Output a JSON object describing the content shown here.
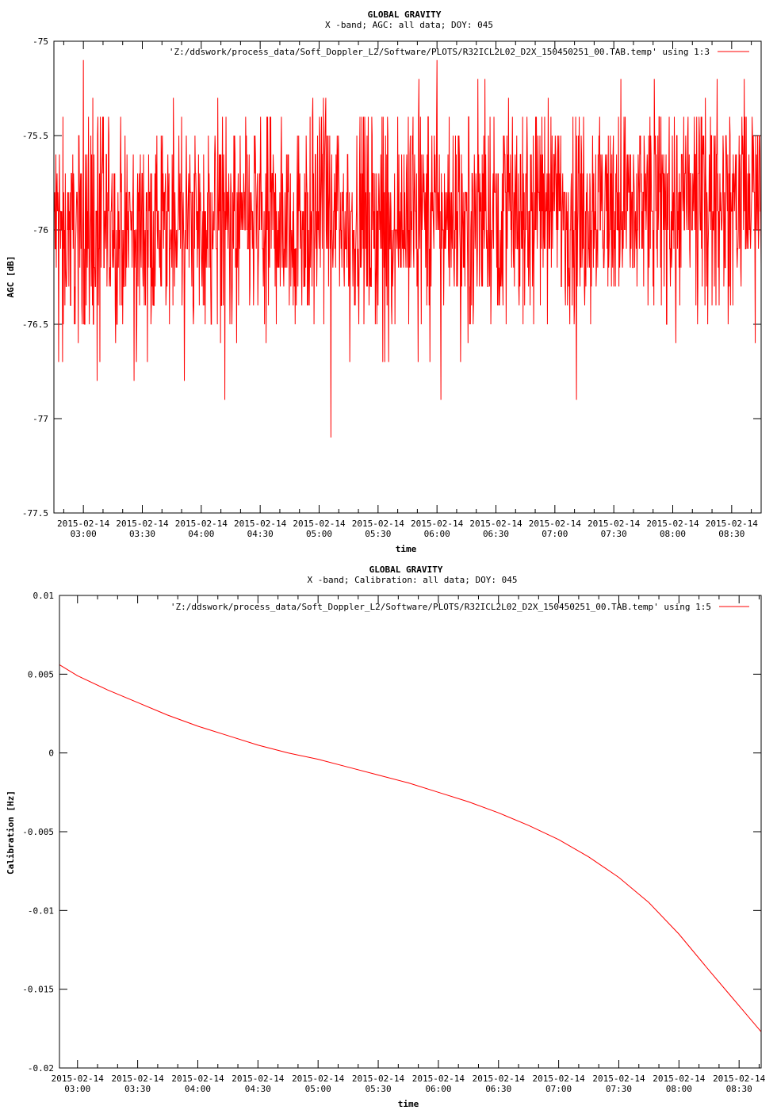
{
  "colors": {
    "series": "#ff0000",
    "axis": "#000000",
    "background": "#ffffff"
  },
  "chart_data": [
    {
      "type": "line",
      "title": "GLOBAL GRAVITY",
      "subtitle": "X -band; AGC: all data; DOY: 045",
      "xlabel": "time",
      "ylabel": "AGC [dB]",
      "legend": "'Z:/ddswork/process_data/Soft_Doppler_L2/Software/PLOTS/R32ICL2L02_D2X_150450251_00.TAB.temp' using 1:3",
      "legend_position": "top-right",
      "grid": false,
      "ylim": [
        -77.5,
        -75
      ],
      "yticks": [
        "-75",
        "-75.5",
        "-76",
        "-76.5",
        "-77",
        "-77.5"
      ],
      "ytick_values": [
        -75,
        -75.5,
        -76,
        -76.5,
        -77,
        -77.5
      ],
      "xrange_minutes": [
        165,
        525
      ],
      "xtick_minutes": [
        180,
        210,
        240,
        270,
        300,
        330,
        360,
        390,
        420,
        450,
        480,
        510
      ],
      "xtick_dates": [
        "2015-02-14",
        "2015-02-14",
        "2015-02-14",
        "2015-02-14",
        "2015-02-14",
        "2015-02-14",
        "2015-02-14",
        "2015-02-14",
        "2015-02-14",
        "2015-02-14",
        "2015-02-14",
        "2015-02-14"
      ],
      "xtick_times": [
        "03:00",
        "03:30",
        "04:00",
        "04:30",
        "05:00",
        "05:30",
        "06:00",
        "06:30",
        "07:00",
        "07:30",
        "08:00",
        "08:30"
      ],
      "series": [
        {
          "description_points": "noisy AGC signal sampled ~every 1 min; values in dB",
          "noise_profile": {
            "start_minute": 165,
            "end_minute": 525,
            "mean_start": -76.0,
            "mean_end": -75.85,
            "typical_range": [
              -76.5,
              -75.4
            ],
            "extremes": [
              {
                "minute": 180,
                "value": -75.1
              },
              {
                "minute": 187,
                "value": -76.8
              },
              {
                "minute": 252,
                "value": -76.9
              },
              {
                "minute": 306,
                "value": -77.1
              },
              {
                "minute": 360,
                "value": -75.1
              },
              {
                "minute": 362,
                "value": -76.9
              },
              {
                "minute": 431,
                "value": -76.9
              },
              {
                "minute": 522,
                "value": -76.6
              }
            ]
          }
        }
      ]
    },
    {
      "type": "line",
      "title": "GLOBAL GRAVITY",
      "subtitle": "X -band; Calibration: all data; DOY: 045",
      "xlabel": "time",
      "ylabel": "Calibration [Hz]",
      "legend": "'Z:/ddswork/process_data/Soft_Doppler_L2/Software/PLOTS/R32ICL2L02_D2X_150450251_00.TAB.temp' using 1:5",
      "legend_position": "top-right",
      "grid": false,
      "ylim": [
        -0.02,
        0.01
      ],
      "yticks": [
        "0.01",
        "0.005",
        "0",
        "-0.005",
        "-0.01",
        "-0.015",
        "-0.02"
      ],
      "ytick_values": [
        0.01,
        0.005,
        0,
        -0.005,
        -0.01,
        -0.015,
        -0.02
      ],
      "xrange_minutes": [
        171,
        521
      ],
      "xtick_minutes": [
        180,
        210,
        240,
        270,
        300,
        330,
        360,
        390,
        420,
        450,
        480,
        510
      ],
      "xtick_dates": [
        "2015-02-14",
        "2015-02-14",
        "2015-02-14",
        "2015-02-14",
        "2015-02-14",
        "2015-02-14",
        "2015-02-14",
        "2015-02-14",
        "2015-02-14",
        "2015-02-14",
        "2015-02-14",
        "2015-02-14"
      ],
      "xtick_times": [
        "03:00",
        "03:30",
        "04:00",
        "04:30",
        "05:00",
        "05:30",
        "06:00",
        "06:30",
        "07:00",
        "07:30",
        "08:00",
        "08:30"
      ],
      "series": [
        {
          "x_minutes": [
            171,
            180,
            195,
            210,
            225,
            240,
            255,
            270,
            285,
            300,
            315,
            330,
            345,
            360,
            375,
            390,
            405,
            420,
            435,
            450,
            465,
            480,
            495,
            505,
            515,
            521
          ],
          "values": [
            0.0056,
            0.0049,
            0.004,
            0.0032,
            0.0024,
            0.0017,
            0.0011,
            0.0005,
            0.0,
            -0.0004,
            -0.0009,
            -0.0014,
            -0.0019,
            -0.0025,
            -0.0031,
            -0.0038,
            -0.0046,
            -0.0055,
            -0.0066,
            -0.0079,
            -0.0095,
            -0.0115,
            -0.0138,
            -0.0153,
            -0.0168,
            -0.0177
          ]
        }
      ]
    }
  ]
}
